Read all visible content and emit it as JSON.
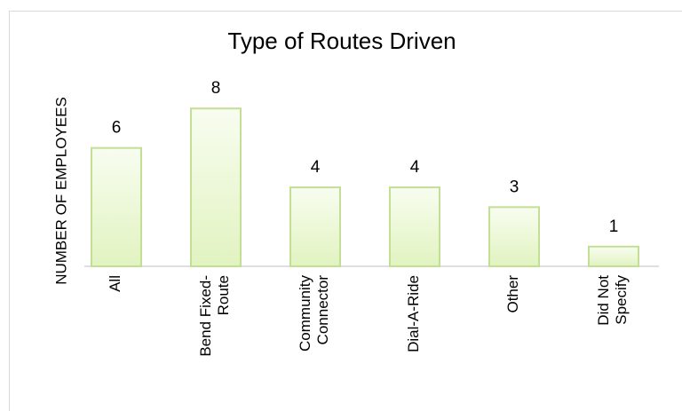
{
  "chart_data": {
    "type": "bar",
    "title": "Type of Routes Driven",
    "y_label": "NUMBER OF EMPLOYEES",
    "categories": [
      "All",
      "Bend Fixed-\nRoute",
      "Community\nConnector",
      "Dial-A-Ride",
      "Other",
      "Did Not\nSpecify"
    ],
    "values": [
      6,
      8,
      4,
      4,
      3,
      1
    ],
    "color": "#e9f6d2",
    "edge_color": "#c3df96",
    "ylim": [
      0,
      9
    ],
    "grid": false
  }
}
